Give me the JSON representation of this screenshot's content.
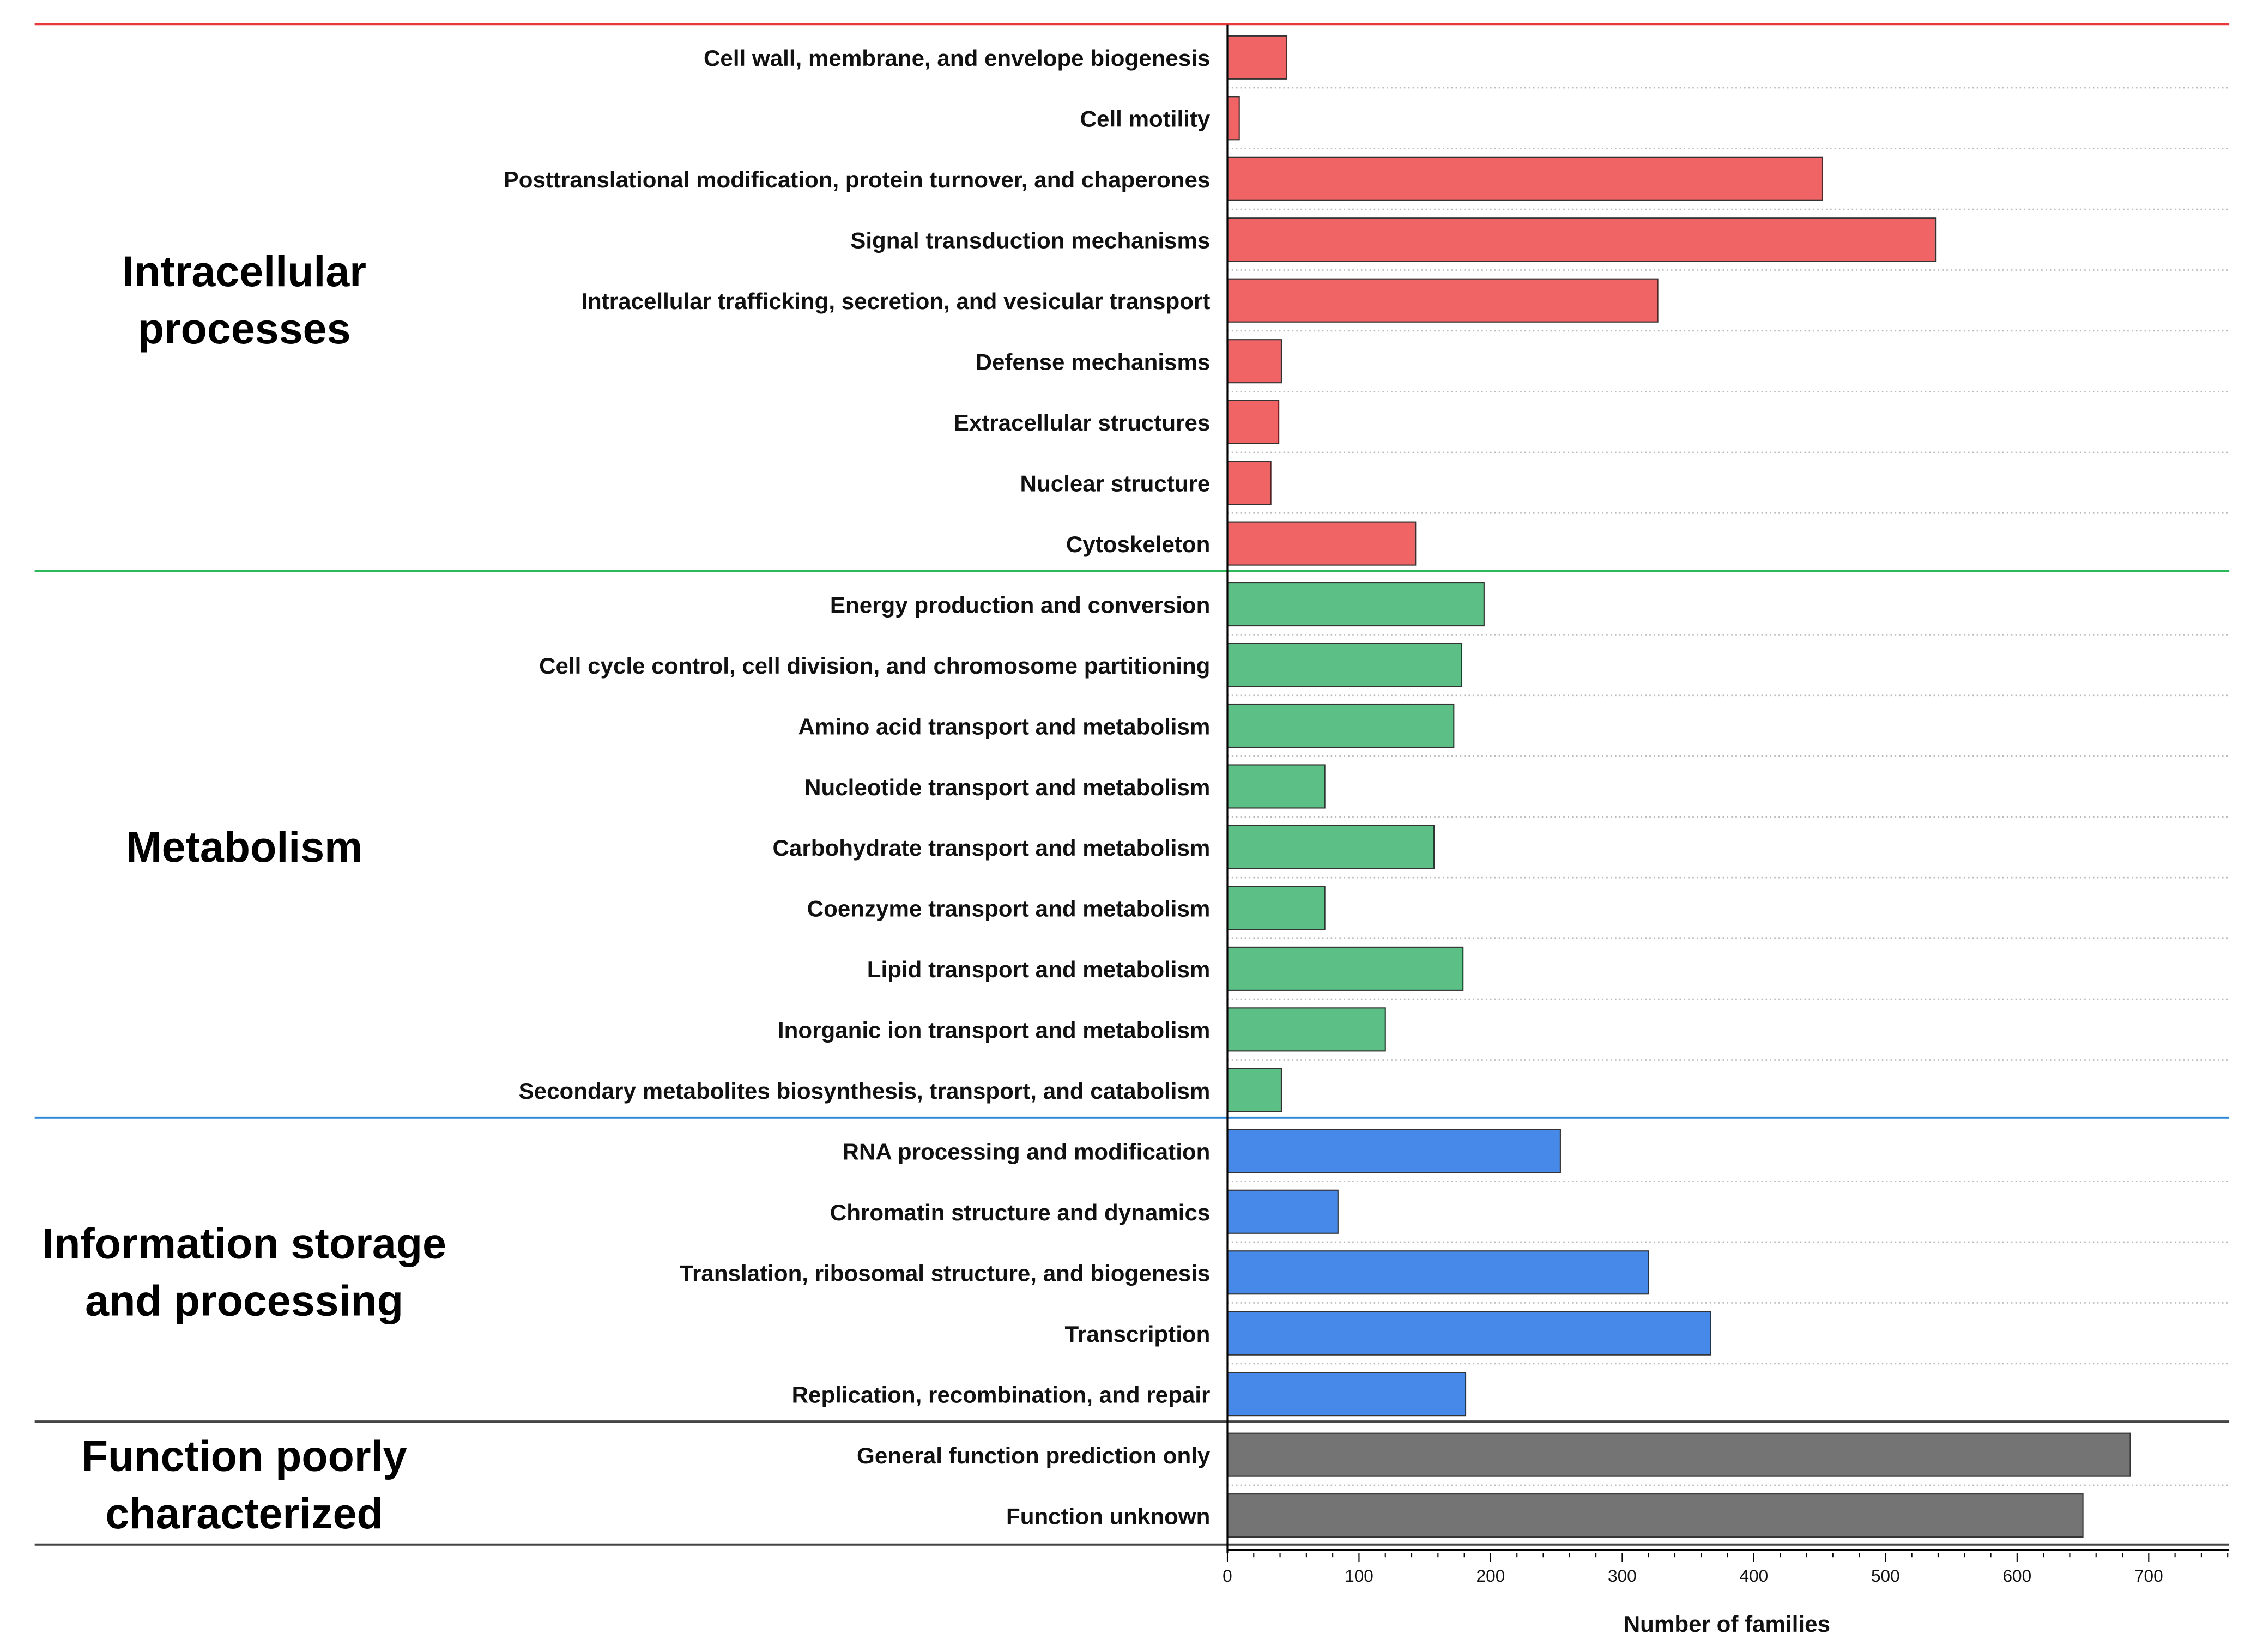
{
  "chart_data": {
    "type": "bar",
    "orientation": "horizontal",
    "xlabel": "Number of families",
    "xlim": [
      0,
      760
    ],
    "xticks": [
      "0",
      "100",
      "200",
      "300",
      "400",
      "500",
      "600",
      "700"
    ],
    "grid": "dotted horizontal row separators",
    "groups": [
      {
        "name": "Intracellular processes",
        "lines": [
          "Intracellular",
          "processes"
        ],
        "color": "#f06466",
        "categories": [
          "Cell wall, membrane, and envelope biogenesis",
          "Cell motility",
          "Posttranslational modification, protein turnover, and chaperones",
          "Signal transduction mechanisms",
          "Intracellular trafficking, secretion, and vesicular transport",
          "Defense mechanisms",
          "Extracellular structures",
          "Nuclear structure",
          "Cytoskeleton"
        ],
        "values": [
          45,
          9,
          452,
          538,
          327,
          41,
          39,
          33,
          143
        ]
      },
      {
        "name": "Metabolism",
        "lines": [
          "Metabolism"
        ],
        "color": "#5bbf86",
        "categories": [
          "Energy production and conversion",
          "Cell cycle control, cell division, and chromosome partitioning",
          "Amino acid transport and metabolism",
          "Nucleotide transport and metabolism",
          "Carbohydrate transport and metabolism",
          "Coenzyme transport and metabolism",
          "Lipid transport and metabolism",
          "Inorganic ion transport and metabolism",
          "Secondary metabolites biosynthesis, transport, and catabolism"
        ],
        "values": [
          195,
          178,
          172,
          74,
          157,
          74,
          179,
          120,
          41
        ]
      },
      {
        "name": "Information storage and processing",
        "lines": [
          "Information storage",
          "and processing"
        ],
        "color": "#4689e8",
        "categories": [
          "RNA processing and modification",
          "Chromatin structure and dynamics",
          "Translation, ribosomal structure, and biogenesis",
          "Transcription",
          "Replication, recombination, and repair"
        ],
        "values": [
          253,
          84,
          320,
          367,
          181
        ]
      },
      {
        "name": "Function poorly characterized",
        "lines": [
          "Function poorly",
          "characterized"
        ],
        "color": "#747474",
        "categories": [
          "General function prediction only",
          "Function unknown"
        ],
        "values": [
          686,
          650
        ]
      }
    ],
    "separator_colors": [
      "#e8383b",
      "#2db85a",
      "#2a86d8",
      "#444444",
      "#444444"
    ]
  }
}
